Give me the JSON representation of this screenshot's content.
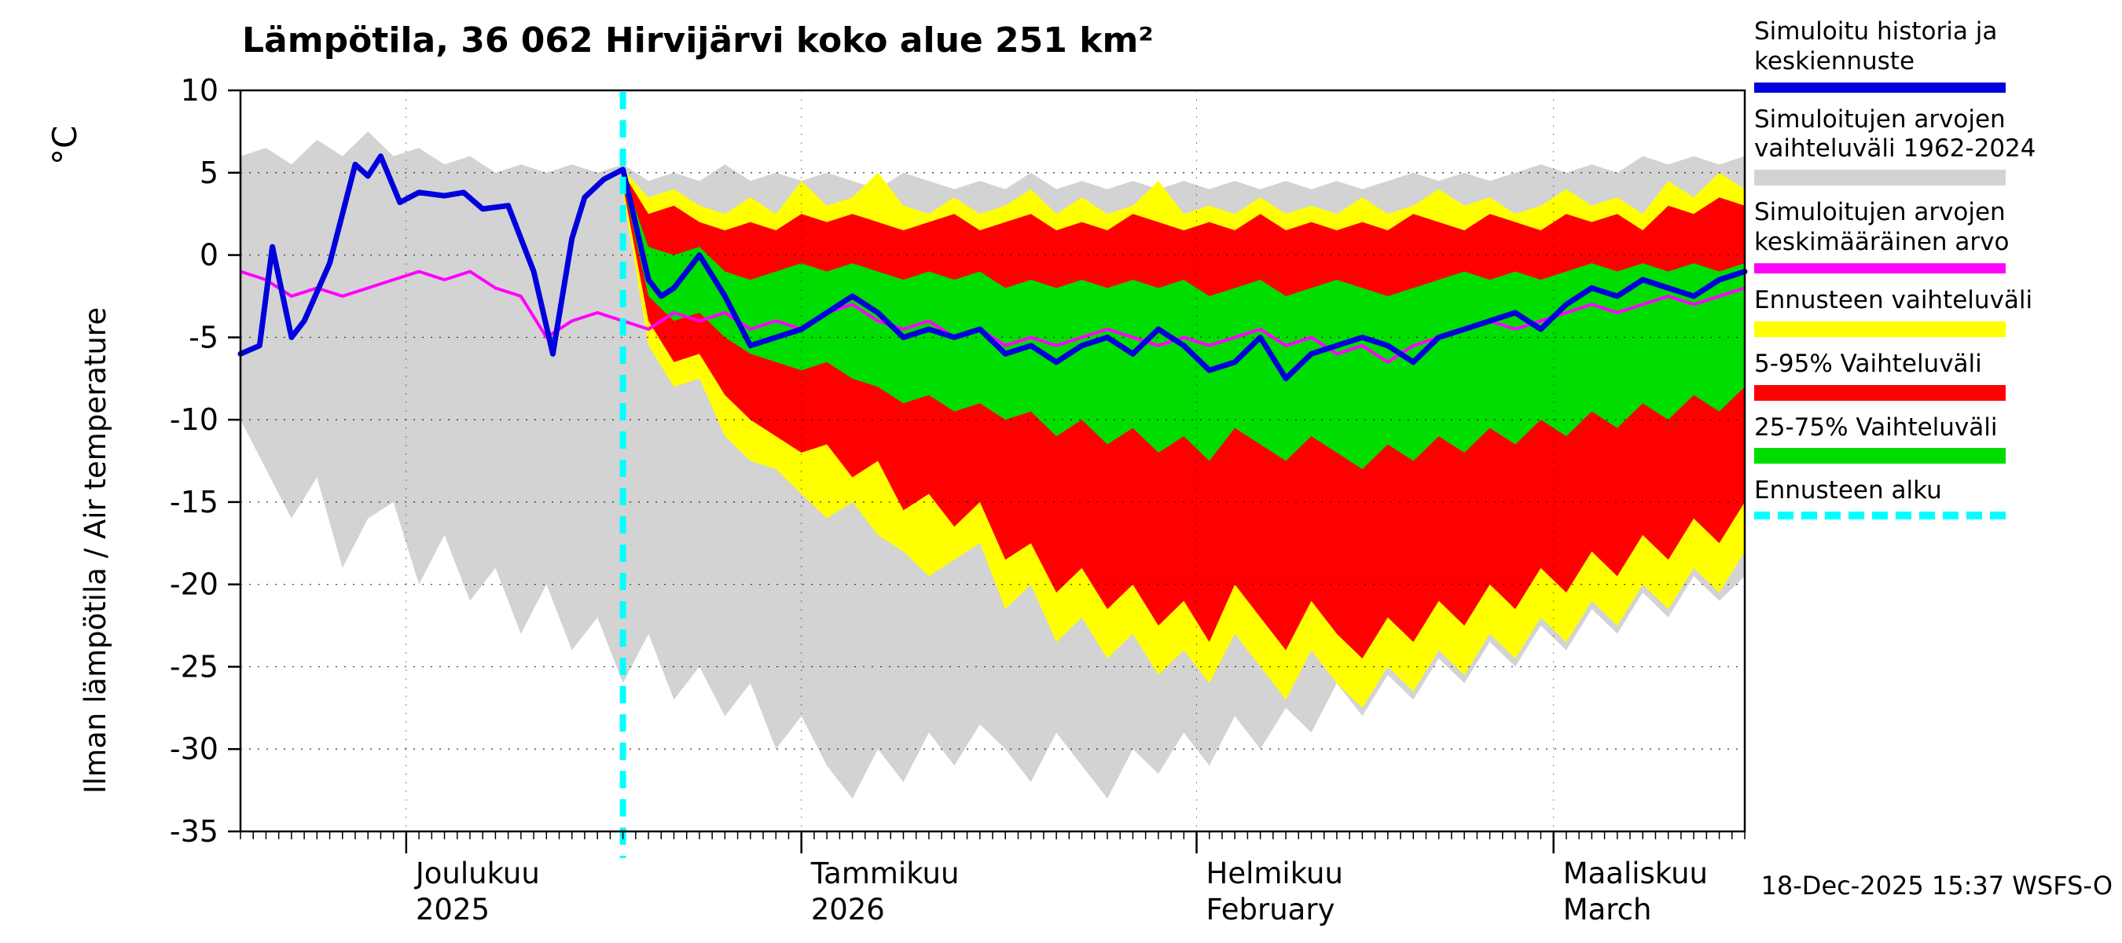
{
  "header": {
    "title": "Lämpötila, 36 062 Hirvijärvi koko alue 251 km²"
  },
  "y_axis": {
    "unit": "°C",
    "label": "Ilman lämpötila / Air temperature"
  },
  "footer": {
    "timestamp": "18-Dec-2025 15:37 WSFS-O"
  },
  "colors": {
    "blue": "#0000dd",
    "gray": "#d3d3d3",
    "magenta": "#ff00ff",
    "yellow": "#ffff00",
    "red": "#ff0000",
    "green": "#00dd00",
    "cyan": "#00ffff",
    "axis": "#000000"
  },
  "legend": {
    "entries": [
      {
        "lines": [
          "Simuloitu historia ja",
          "keskiennuste"
        ],
        "color": "blue",
        "style": "line"
      },
      {
        "lines": [
          "Simuloitujen arvojen",
          "vaihteluväli 1962-2024"
        ],
        "color": "gray",
        "style": "band"
      },
      {
        "lines": [
          "Simuloitujen arvojen",
          "keskimääräinen arvo"
        ],
        "color": "magenta",
        "style": "line"
      },
      {
        "lines": [
          "Ennusteen vaihteluväli"
        ],
        "color": "yellow",
        "style": "band"
      },
      {
        "lines": [
          "5-95% Vaihteluväli"
        ],
        "color": "red",
        "style": "band"
      },
      {
        "lines": [
          "25-75% Vaihteluväli"
        ],
        "color": "green",
        "style": "band"
      },
      {
        "lines": [
          "Ennusteen alku"
        ],
        "color": "cyan",
        "style": "dashed"
      }
    ]
  },
  "chart_data": {
    "type": "line",
    "title": "Lämpötila, 36 062 Hirvijärvi koko alue 251 km²",
    "ylabel": "Ilman lämpötila / Air temperature (°C)",
    "ylim": [
      -35,
      10
    ],
    "grid": true,
    "legend_position": "right",
    "x_domain_days": 118,
    "forecast_start_day": 30,
    "y_ticks": [
      10,
      5,
      0,
      -5,
      -10,
      -15,
      -20,
      -25,
      -30,
      -35
    ],
    "months": [
      {
        "day": 13,
        "line1": "Joulukuu",
        "line2": "2025"
      },
      {
        "day": 44,
        "line1": "Tammikuu",
        "line2": "2026"
      },
      {
        "day": 75,
        "line1": "Helmikuu",
        "line2": "February"
      },
      {
        "day": 103,
        "line1": "Maaliskuu",
        "line2": "March"
      }
    ],
    "days": [
      0,
      2,
      4,
      6,
      8,
      10,
      12,
      14,
      16,
      18,
      20,
      22,
      24,
      26,
      28,
      30,
      32,
      34,
      36,
      38,
      40,
      42,
      44,
      46,
      48,
      50,
      52,
      54,
      56,
      58,
      60,
      62,
      64,
      66,
      68,
      70,
      72,
      74,
      76,
      78,
      80,
      82,
      84,
      86,
      88,
      90,
      92,
      94,
      96,
      98,
      100,
      102,
      104,
      106,
      108,
      110,
      112,
      114,
      116,
      118
    ],
    "series": {
      "history_range_max": [
        6,
        6.5,
        5.5,
        7,
        6,
        7.5,
        6,
        6.5,
        5.5,
        6,
        5,
        5.5,
        5,
        5.5,
        5,
        5.5,
        4.5,
        5,
        4.5,
        5.5,
        4.5,
        5,
        4.5,
        5,
        4.5,
        4,
        5,
        4.5,
        4,
        4.5,
        4,
        5,
        4,
        4.5,
        4,
        4.5,
        4,
        4.5,
        4,
        4.5,
        4,
        4.5,
        4,
        4.5,
        4,
        4.5,
        5,
        4.5,
        5,
        4.5,
        5,
        5.5,
        5,
        5.5,
        5,
        6,
        5.5,
        6,
        5.5,
        6
      ],
      "history_range_min": [
        -10,
        -13,
        -16,
        -13.5,
        -19,
        -16,
        -15,
        -20,
        -17,
        -21,
        -19,
        -23,
        -20,
        -24,
        -22,
        -26,
        -23,
        -27,
        -25,
        -28,
        -26,
        -30,
        -28,
        -31,
        -33,
        -30,
        -32,
        -29,
        -31,
        -28.5,
        -30,
        -32,
        -29,
        -31,
        -33,
        -30,
        -31.5,
        -29,
        -31,
        -28,
        -30,
        -27.5,
        -29,
        -26,
        -28,
        -25.5,
        -27,
        -24.5,
        -26,
        -23.5,
        -25,
        -22.5,
        -24,
        -21.5,
        -23,
        -20.5,
        -22,
        -19.5,
        -21,
        -19.5
      ],
      "sim_mean": [
        -1,
        -1.5,
        -2.5,
        -2,
        -2.5,
        -2,
        -1.5,
        -1,
        -1.5,
        -1,
        -2,
        -2.5,
        -5,
        -4,
        -3.5,
        -4,
        -4.5,
        -3.5,
        -4,
        -3.5,
        -4.5,
        -4,
        -4.5,
        -3.5,
        -3,
        -4,
        -4.5,
        -4,
        -5,
        -4.5,
        -5.5,
        -5,
        -5.5,
        -5,
        -4.5,
        -5,
        -5.5,
        -5,
        -5.5,
        -5,
        -4.5,
        -5.5,
        -5,
        -6,
        -5.5,
        -6.5,
        -5.5,
        -5,
        -4.5,
        -4,
        -4.5,
        -4,
        -3.5,
        -3,
        -3.5,
        -3,
        -2.5,
        -3,
        -2.5,
        -2
      ],
      "forecast_days": [
        30,
        32,
        34,
        36,
        38,
        40,
        42,
        44,
        46,
        48,
        50,
        52,
        54,
        56,
        58,
        60,
        62,
        64,
        66,
        68,
        70,
        72,
        74,
        76,
        78,
        80,
        82,
        84,
        86,
        88,
        90,
        92,
        94,
        96,
        98,
        100,
        102,
        104,
        106,
        108,
        110,
        112,
        114,
        116,
        118
      ],
      "forecast_range_max": [
        5.2,
        3.5,
        4,
        3,
        2.5,
        3.5,
        2.5,
        4.5,
        3,
        3.5,
        5,
        3,
        2.5,
        3.5,
        2.5,
        3,
        4,
        2.5,
        3.5,
        2.5,
        3,
        4.5,
        2.5,
        3,
        2.5,
        3.5,
        2.5,
        3,
        2.5,
        3.5,
        2.5,
        3,
        4,
        3,
        3.5,
        2.5,
        3,
        4,
        3,
        3.5,
        2.5,
        4.5,
        3.5,
        5,
        4
      ],
      "forecast_range_min": [
        3.8,
        -5.5,
        -8,
        -7.5,
        -11,
        -12.5,
        -13,
        -14.5,
        -16,
        -15,
        -17,
        -18,
        -19.5,
        -18.5,
        -17.5,
        -21.5,
        -20,
        -23.5,
        -22,
        -24.5,
        -23,
        -25.5,
        -24,
        -26,
        -23,
        -25,
        -27,
        -24,
        -26,
        -27.5,
        -25,
        -26.5,
        -24,
        -25.5,
        -23,
        -24.5,
        -22,
        -23.5,
        -21,
        -22.5,
        -20,
        -21.5,
        -19,
        -20.5,
        -18
      ],
      "p5_95_max": [
        5.0,
        2.5,
        3,
        2,
        1.5,
        2,
        1.5,
        2.5,
        2,
        2.5,
        2,
        1.5,
        2,
        2.5,
        1.5,
        2,
        2.5,
        1.5,
        2,
        1.5,
        2.5,
        2,
        1.5,
        2,
        1.5,
        2.5,
        1.5,
        2,
        1.5,
        2,
        1.5,
        2.5,
        2,
        1.5,
        2.5,
        2,
        1.5,
        2.5,
        2,
        2.5,
        1.5,
        3,
        2.5,
        3.5,
        3
      ],
      "p5_95_min": [
        4.2,
        -4,
        -6.5,
        -6,
        -8.5,
        -10,
        -11,
        -12,
        -11.5,
        -13.5,
        -12.5,
        -15.5,
        -14.5,
        -16.5,
        -15,
        -18.5,
        -17.5,
        -20.5,
        -19,
        -21.5,
        -20,
        -22.5,
        -21,
        -23.5,
        -20,
        -22,
        -24,
        -21,
        -23,
        -24.5,
        -22,
        -23.5,
        -21,
        -22.5,
        -20,
        -21.5,
        -19,
        -20.5,
        -18,
        -19.5,
        -17,
        -18.5,
        -16,
        -17.5,
        -15
      ],
      "p25_75_max": [
        4.9,
        0.5,
        0,
        0.5,
        -1,
        -1.5,
        -1,
        -0.5,
        -1,
        -0.5,
        -1,
        -1.5,
        -1,
        -1.5,
        -1,
        -2,
        -1.5,
        -2,
        -1.5,
        -2,
        -1.5,
        -2,
        -1.5,
        -2.5,
        -2,
        -1.5,
        -2.5,
        -2,
        -1.5,
        -2,
        -2.5,
        -2,
        -1.5,
        -1,
        -1.5,
        -1,
        -1.5,
        -1,
        -0.5,
        -1,
        -0.5,
        -1,
        -0.5,
        -1,
        -0.5
      ],
      "p25_75_min": [
        4.4,
        -2.5,
        -4,
        -3.5,
        -5,
        -6,
        -6.5,
        -7,
        -6.5,
        -7.5,
        -8,
        -9,
        -8.5,
        -9.5,
        -9,
        -10,
        -9.5,
        -11,
        -10,
        -11.5,
        -10.5,
        -12,
        -11,
        -12.5,
        -10.5,
        -11.5,
        -12.5,
        -11,
        -12,
        -13,
        -11.5,
        -12.5,
        -11,
        -12,
        -10.5,
        -11.5,
        -10,
        -11,
        -9.5,
        -10.5,
        -9,
        -10,
        -8.5,
        -9.5,
        -8
      ],
      "blue_x": [
        0,
        1.5,
        2.5,
        4,
        5,
        7,
        9,
        10,
        11,
        12.5,
        14,
        16,
        17.5,
        19,
        21,
        23,
        24.5,
        26,
        27,
        28.5,
        30,
        32,
        33,
        34,
        36,
        38,
        40,
        42,
        44,
        46,
        48,
        50,
        52,
        54,
        56,
        58,
        60,
        62,
        64,
        66,
        68,
        70,
        72,
        74,
        76,
        78,
        80,
        82,
        84,
        86,
        88,
        90,
        92,
        94,
        96,
        98,
        100,
        102,
        104,
        106,
        108,
        110,
        112,
        114,
        116,
        118
      ],
      "blue_y": [
        -6,
        -5.5,
        0.5,
        -5,
        -4,
        -0.5,
        5.5,
        4.8,
        6,
        3.2,
        3.8,
        3.6,
        3.8,
        2.8,
        3,
        -1,
        -6,
        1,
        3.5,
        4.6,
        5.2,
        -1.5,
        -2.5,
        -2,
        0,
        -2.5,
        -5.5,
        -5,
        -4.5,
        -3.5,
        -2.5,
        -3.5,
        -5,
        -4.5,
        -5,
        -4.5,
        -6,
        -5.5,
        -6.5,
        -5.5,
        -5,
        -6,
        -4.5,
        -5.5,
        -7,
        -6.5,
        -5,
        -7.5,
        -6,
        -5.5,
        -5,
        -5.5,
        -6.5,
        -5,
        -4.5,
        -4,
        -3.5,
        -4.5,
        -3,
        -2,
        -2.5,
        -1.5,
        -2,
        -2.5,
        -1.5,
        -1
      ]
    }
  }
}
